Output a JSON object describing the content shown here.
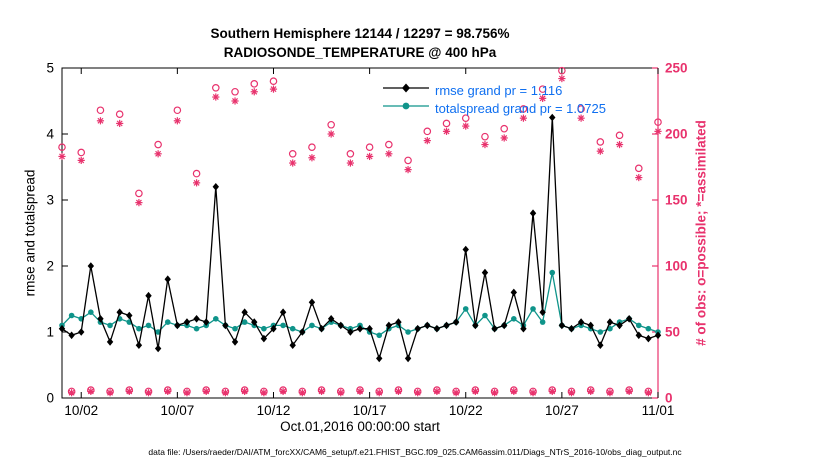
{
  "figure": {
    "title_line1": "Southern Hemisphere 12144 / 12297 = 98.756%",
    "title_line2": "RADIOSONDE_TEMPERATURE @ 400 hPa",
    "xlabel": "Oct.01,2016 00:00:00 start",
    "ylabel_left": "rmse and totalspread",
    "ylabel_right": "# of obs: o=possible; *=assimilated",
    "caption": "data file: /Users/raeder/DAI/ATM_forcXX/CAM6_setup/f.e21.FHIST_BGC.f09_025.CAM6assim.011/Diags_NTrS_2016-10/obs_diag_output.nc",
    "legend": {
      "rmse_label": "rmse grand pr = 1.116",
      "totalspread_label": "totalspread grand pr = 1.0725"
    },
    "colors": {
      "rmse_black": "#000000",
      "totalspread_teal": "#0f948a",
      "obs_pink": "#e8326d",
      "legend_text_blue": "#0f6ff0"
    }
  },
  "chart_data": {
    "type": "line",
    "title": "Southern Hemisphere 12144 / 12297 = 98.756% | RADIOSONDE_TEMPERATURE @ 400 hPa",
    "xlabel": "Oct.01,2016 00:00:00 start",
    "x_range": [
      0,
      62
    ],
    "x_units": "half-days since Oct 1, 2016 00:00 UTC",
    "x_tick_positions": [
      2,
      12,
      22,
      32,
      42,
      52,
      62
    ],
    "x_tick_labels": [
      "10/02",
      "10/07",
      "10/12",
      "10/17",
      "10/22",
      "10/27",
      "11/01"
    ],
    "grid": false,
    "legend_position": "top-center-inside",
    "y_left": {
      "label": "rmse and totalspread",
      "range": [
        0,
        5
      ],
      "ticks": [
        0,
        1,
        2,
        3,
        4,
        5
      ]
    },
    "y_right": {
      "label": "# of obs: o=possible; *=assimilated",
      "range": [
        0,
        250
      ],
      "ticks": [
        0,
        50,
        100,
        150,
        200,
        250
      ]
    },
    "series": [
      {
        "name": "rmse",
        "axis": "left",
        "marker": "diamond",
        "grand_mean": 1.116,
        "values": [
          1.05,
          0.95,
          1.0,
          2.0,
          1.2,
          0.85,
          1.3,
          1.25,
          0.8,
          1.55,
          0.75,
          1.8,
          1.1,
          1.15,
          1.2,
          1.15,
          3.2,
          1.1,
          0.85,
          1.3,
          1.15,
          0.9,
          1.05,
          1.3,
          0.8,
          1.0,
          1.45,
          1.05,
          1.2,
          1.1,
          1.0,
          1.05,
          1.05,
          0.6,
          1.1,
          1.15,
          0.6,
          1.05,
          1.1,
          1.05,
          1.1,
          1.15,
          2.25,
          1.1,
          1.9,
          1.05,
          1.1,
          1.6,
          1.05,
          2.8,
          1.3,
          4.25,
          1.1,
          1.05,
          1.15,
          1.1,
          0.8,
          1.15,
          1.1,
          1.2,
          0.95,
          0.9,
          0.95
        ]
      },
      {
        "name": "totalspread",
        "axis": "left",
        "marker": "dot",
        "grand_mean": 1.0725,
        "values": [
          1.1,
          1.25,
          1.2,
          1.3,
          1.15,
          1.1,
          1.2,
          1.15,
          1.05,
          1.1,
          1.0,
          1.15,
          1.1,
          1.1,
          1.05,
          1.1,
          1.2,
          1.1,
          1.05,
          1.15,
          1.1,
          1.05,
          1.1,
          1.1,
          1.05,
          1.0,
          1.1,
          1.05,
          1.15,
          1.1,
          1.05,
          1.1,
          1.0,
          0.95,
          1.05,
          1.1,
          1.0,
          1.05,
          1.1,
          1.05,
          1.1,
          1.15,
          1.35,
          1.1,
          1.25,
          1.05,
          1.1,
          1.2,
          1.1,
          1.35,
          1.15,
          1.9,
          1.1,
          1.05,
          1.1,
          1.05,
          1.0,
          1.05,
          1.15,
          1.2,
          1.1,
          1.05,
          1.0
        ]
      },
      {
        "name": "possible_obs",
        "axis": "right",
        "marker": "open-circle",
        "values": [
          190,
          5,
          186,
          6,
          218,
          5,
          215,
          6,
          155,
          5,
          192,
          6,
          218,
          5,
          170,
          6,
          235,
          5,
          232,
          6,
          238,
          5,
          240,
          6,
          185,
          5,
          190,
          6,
          207,
          5,
          185,
          6,
          190,
          5,
          192,
          6,
          180,
          5,
          202,
          6,
          208,
          5,
          212,
          6,
          198,
          5,
          204,
          6,
          219,
          5,
          234,
          6,
          248,
          5,
          219,
          6,
          194,
          5,
          199,
          6,
          174,
          5,
          209
        ]
      },
      {
        "name": "assimilated_obs",
        "axis": "right",
        "marker": "asterisk",
        "values": [
          183,
          4,
          180,
          5,
          210,
          4,
          208,
          5,
          148,
          4,
          185,
          5,
          210,
          4,
          163,
          5,
          228,
          4,
          225,
          5,
          232,
          4,
          234,
          5,
          178,
          4,
          182,
          5,
          200,
          4,
          178,
          5,
          183,
          4,
          185,
          5,
          173,
          4,
          195,
          5,
          202,
          4,
          206,
          5,
          192,
          4,
          197,
          5,
          212,
          4,
          227,
          5,
          242,
          4,
          212,
          5,
          187,
          4,
          192,
          5,
          167,
          4,
          202
        ]
      }
    ]
  }
}
